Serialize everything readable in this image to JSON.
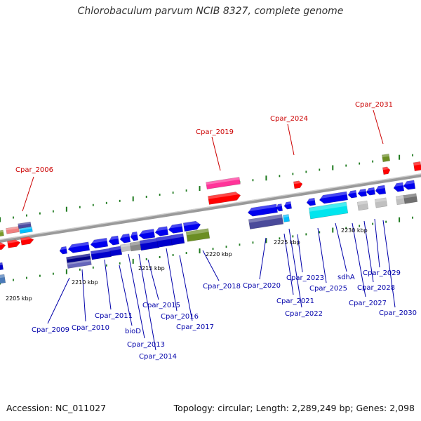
{
  "title": "Chlorobaculum parvum NCIB 8327, complete genome",
  "footer": {
    "accession": "Accession: NC_011027",
    "summary": "Topology: circular; Length: 2,289,249 bp; Genes: 2,098"
  },
  "colors": {
    "top_strand_label": "#cc0000",
    "bottom_strand_label": "#0000aa",
    "backbone": "#8a8a8a",
    "tick": "#1e7a1e"
  },
  "kbp_labels": [
    "2205 kbp",
    "2210 kbp",
    "2215 kbp",
    "2220 kbp",
    "2225 kbp",
    "2230 kbp"
  ],
  "top_labels": [
    "Cpar_2006",
    "Cpar_2019",
    "Cpar_2024",
    "Cpar_2031"
  ],
  "bottom_labels": [
    "Cpar_2009",
    "Cpar_2010",
    "Cpar_2011",
    "bioD",
    "Cpar_2013",
    "Cpar_2014",
    "Cpar_2015",
    "Cpar_2016",
    "Cpar_2017",
    "Cpar_2018",
    "Cpar_2020",
    "Cpar_2021",
    "Cpar_2022",
    "Cpar_2023",
    "Cpar_2025",
    "sdhA",
    "Cpar_2027",
    "Cpar_2028",
    "Cpar_2029",
    "Cpar_2030"
  ]
}
